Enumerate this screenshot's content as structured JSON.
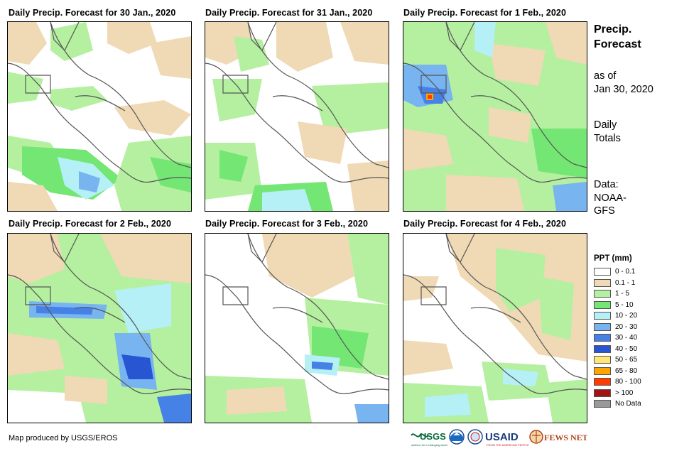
{
  "panels": [
    {
      "title": "Daily Precip. Forecast for 30 Jan., 2020"
    },
    {
      "title": "Daily Precip. Forecast for 31 Jan., 2020"
    },
    {
      "title": "Daily Precip. Forecast for 1 Feb., 2020"
    },
    {
      "title": "Daily Precip. Forecast for 2 Feb., 2020"
    },
    {
      "title": "Daily Precip. Forecast for 3 Feb., 2020"
    },
    {
      "title": "Daily Precip. Forecast for 4 Feb., 2020"
    }
  ],
  "side": {
    "title_line1": "Precip.",
    "title_line2": "Forecast",
    "asof_line1": "as of",
    "asof_line2": "Jan 30, 2020",
    "totals_line1": "Daily",
    "totals_line2": "Totals",
    "data_line1": "Data:",
    "data_line2": "NOAA-",
    "data_line3": "GFS"
  },
  "legend": {
    "title": "PPT (mm)",
    "items": [
      {
        "label": "0 - 0.1",
        "color": "#ffffff"
      },
      {
        "label": "0.1 - 1",
        "color": "#f0d9b5"
      },
      {
        "label": "1 - 5",
        "color": "#b4f0a0"
      },
      {
        "label": "5 - 10",
        "color": "#73e673"
      },
      {
        "label": "10 - 20",
        "color": "#b4f0f5"
      },
      {
        "label": "20 - 30",
        "color": "#78b4f0"
      },
      {
        "label": "30 - 40",
        "color": "#4682e6"
      },
      {
        "label": "40 - 50",
        "color": "#2855d2"
      },
      {
        "label": "50 - 65",
        "color": "#ffe678"
      },
      {
        "label": "65 - 80",
        "color": "#ffa500"
      },
      {
        "label": "80 - 100",
        "color": "#ff3c00"
      },
      {
        "label": "> 100",
        "color": "#a01414"
      },
      {
        "label": "No Data",
        "color": "#999999"
      }
    ]
  },
  "credit": "Map produced by USGS/EROS",
  "logos": {
    "usgs": "USGS",
    "usgs_tagline": "science for a changing world",
    "usaid": "USAID",
    "usaid_tagline": "FROM THE AMERICAN PEOPLE",
    "fewsnet": "FEWS NET"
  }
}
